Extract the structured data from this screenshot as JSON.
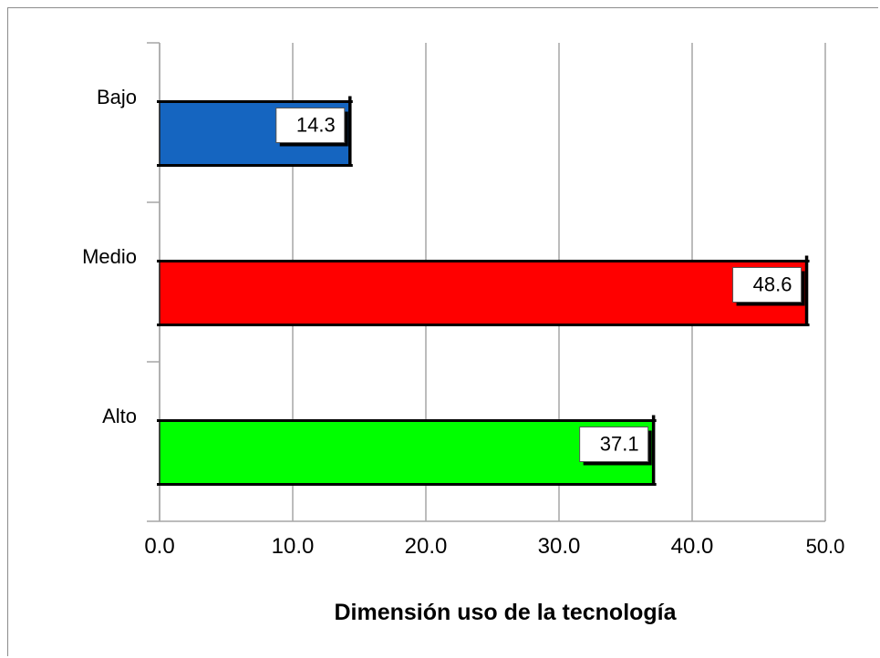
{
  "chart_data": {
    "type": "bar",
    "orientation": "horizontal",
    "title": "",
    "xlabel": "Dimensión uso de la tecnología",
    "ylabel": "",
    "categories": [
      "Bajo",
      "Medio",
      "Alto"
    ],
    "values": [
      14.3,
      48.6,
      37.1
    ],
    "data_labels": [
      "14.3",
      "48.6",
      "37.1"
    ],
    "colors": [
      "#1565c0",
      "#ff0000",
      "#00ff00"
    ],
    "xlim": [
      0,
      50
    ],
    "xticks": [
      0,
      10,
      20,
      30,
      40,
      50
    ],
    "xtick_labels": [
      "0.0",
      "10.0",
      "20.0",
      "30.0",
      "40.0",
      "50.0"
    ],
    "grid": "vertical",
    "legend": "none"
  }
}
